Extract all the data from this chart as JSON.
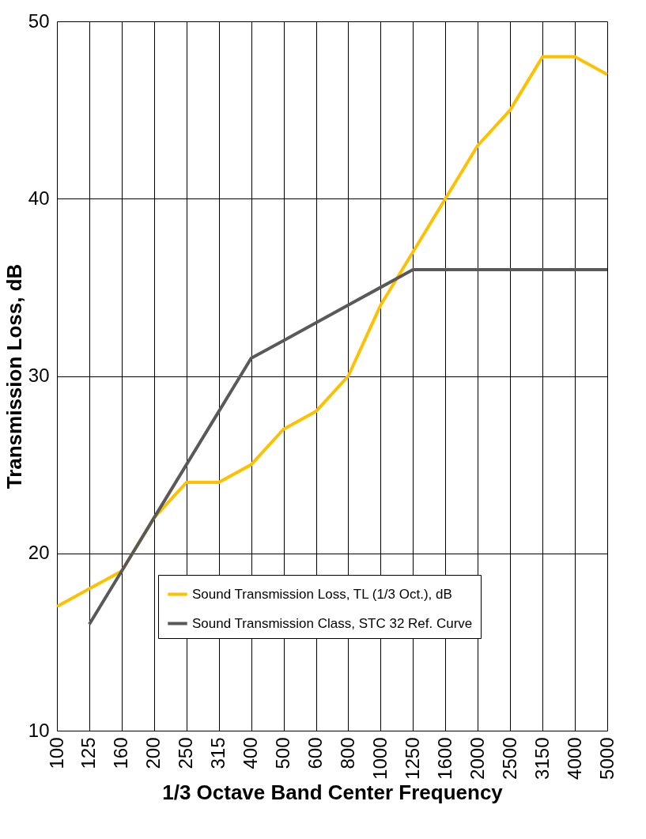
{
  "chart_data": {
    "type": "line",
    "xlabel": "1/3 Octave Band Center Frequency",
    "ylabel": "Transmission Loss, dB",
    "categories": [
      "100",
      "125",
      "160",
      "200",
      "250",
      "315",
      "400",
      "500",
      "600",
      "800",
      "1000",
      "1250",
      "1600",
      "2000",
      "2500",
      "3150",
      "4000",
      "5000"
    ],
    "series": [
      {
        "name": "Sound Transmission Loss, TL (1/3 Oct.), dB",
        "color": "#ffc000",
        "values": [
          17,
          18,
          19,
          22,
          24,
          24,
          25,
          27,
          28,
          30,
          34,
          37,
          40,
          43,
          45,
          48,
          48,
          47
        ]
      },
      {
        "name": "Sound Transmission Class, STC 32 Ref. Curve",
        "color": "#595959",
        "values": [
          null,
          16,
          19,
          22,
          25,
          28,
          31,
          32,
          33,
          34,
          35,
          36,
          36,
          36,
          36,
          36,
          36,
          36
        ]
      }
    ],
    "ylim": [
      10,
      50
    ],
    "yticks": [
      10,
      20,
      30,
      40,
      50
    ],
    "grid": true,
    "legend": "bottom right",
    "marker": "none",
    "line_style": "solid"
  }
}
